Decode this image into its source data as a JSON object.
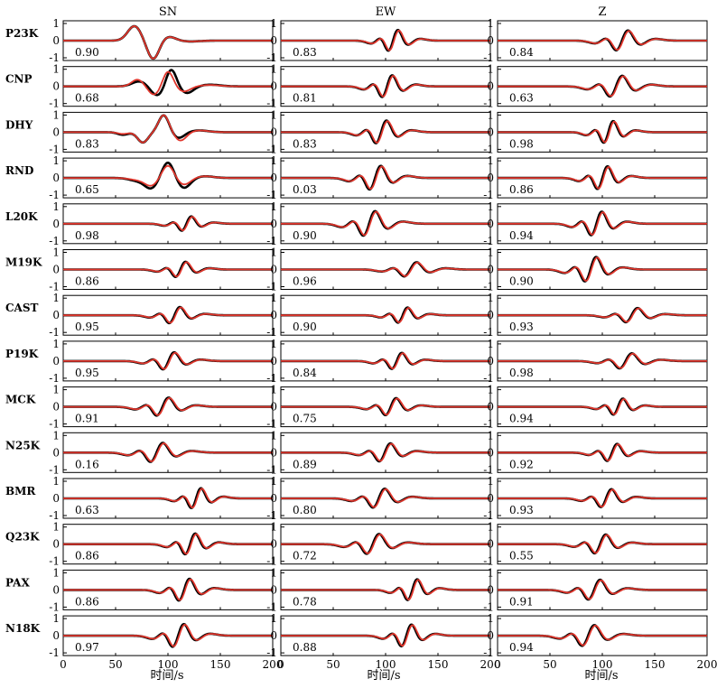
{
  "chart_data": {
    "type": "line",
    "components": [
      "SN",
      "EW",
      "Z"
    ],
    "stations": [
      "P23K",
      "CNP",
      "DHY",
      "RND",
      "L20K",
      "M19K",
      "CAST",
      "P19K",
      "MCK",
      "N25K",
      "BMR",
      "Q23K",
      "PAX",
      "N18K"
    ],
    "xlabel": "时间/s",
    "xlim": [
      0,
      200
    ],
    "ylim": [
      -1,
      1
    ],
    "x_ticks": [
      0,
      50,
      100,
      150,
      200
    ],
    "y_ticks": [
      1,
      0,
      -1
    ],
    "series_colors": {
      "observed": "#000000",
      "synthetic": "#e0362c"
    },
    "cc": [
      [
        0.9,
        0.83,
        0.84
      ],
      [
        0.68,
        0.81,
        0.63
      ],
      [
        0.83,
        0.83,
        0.98
      ],
      [
        0.65,
        0.03,
        0.86
      ],
      [
        0.98,
        0.9,
        0.94
      ],
      [
        0.86,
        0.96,
        0.9
      ],
      [
        0.95,
        0.9,
        0.93
      ],
      [
        0.95,
        0.84,
        0.98
      ],
      [
        0.91,
        0.75,
        0.94
      ],
      [
        0.16,
        0.89,
        0.92
      ],
      [
        0.63,
        0.8,
        0.93
      ],
      [
        0.86,
        0.72,
        0.55
      ],
      [
        0.86,
        0.78,
        0.91
      ],
      [
        0.97,
        0.88,
        0.94
      ]
    ],
    "waveforms": [
      [
        [
          [
            68,
            0.85,
            9
          ],
          [
            86,
            -1.1,
            8
          ],
          [
            100,
            0.25,
            10
          ],
          [
            120,
            -0.05,
            14
          ]
        ],
        [
          [
            68,
            0.85,
            9
          ],
          [
            86,
            -1.1,
            8
          ],
          [
            100,
            0.25,
            10
          ],
          [
            120,
            -0.05,
            14
          ]
        ]
      ],
      [
        [
          [
            73,
            0.3,
            10
          ],
          [
            90,
            -0.55,
            9
          ],
          [
            103,
            1.05,
            7
          ],
          [
            118,
            -0.4,
            9
          ],
          [
            140,
            0.1,
            14
          ]
        ],
        [
          [
            71,
            0.4,
            8
          ],
          [
            87,
            -0.5,
            8
          ],
          [
            100,
            0.9,
            7
          ],
          [
            115,
            -0.3,
            9
          ],
          [
            140,
            0.08,
            14
          ]
        ]
      ],
      [
        [
          [
            57,
            -0.15,
            7
          ],
          [
            76,
            -0.6,
            7
          ],
          [
            96,
            1.0,
            7
          ],
          [
            110,
            -0.35,
            8
          ],
          [
            130,
            0.1,
            12
          ]
        ],
        [
          [
            57,
            -0.1,
            7
          ],
          [
            76,
            -0.6,
            7
          ],
          [
            96,
            1.0,
            7
          ],
          [
            112,
            -0.5,
            8
          ],
          [
            130,
            0.1,
            12
          ]
        ]
      ],
      [
        [
          [
            70,
            -0.15,
            10
          ],
          [
            84,
            -0.6,
            9
          ],
          [
            100,
            0.95,
            8
          ],
          [
            115,
            -0.6,
            9
          ],
          [
            135,
            0.1,
            12
          ]
        ],
        [
          [
            70,
            -0.1,
            10
          ],
          [
            84,
            -0.45,
            9
          ],
          [
            100,
            0.75,
            8
          ],
          [
            115,
            -0.4,
            9
          ],
          [
            135,
            0.1,
            12
          ]
        ]
      ]
    ]
  }
}
